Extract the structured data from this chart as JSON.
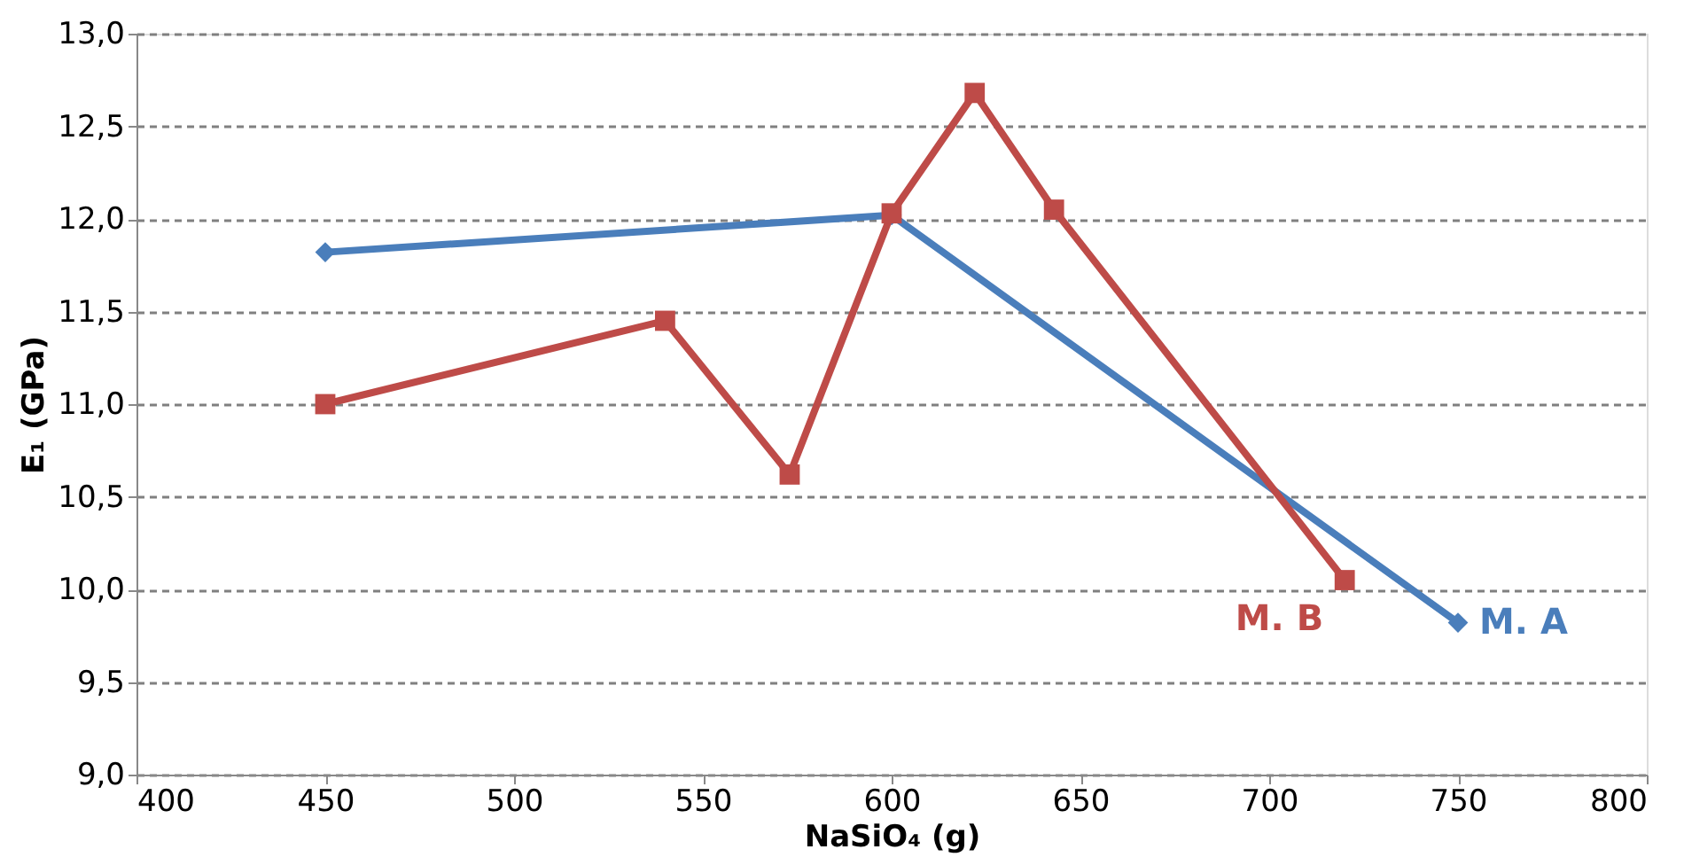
{
  "chart_data": {
    "type": "line",
    "xlabel": "NaSiO₄ (g)",
    "ylabel": "E₁ (GPa)",
    "xlim": [
      400,
      800
    ],
    "xticks": [
      400,
      450,
      500,
      550,
      600,
      650,
      700,
      750,
      800
    ],
    "ylim": [
      9,
      13
    ],
    "yticks": [
      {
        "value": 9,
        "label": "9,0"
      },
      {
        "value": 9.5,
        "label": "9,5"
      },
      {
        "value": 10,
        "label": "10,0"
      },
      {
        "value": 10.5,
        "label": "10,5"
      },
      {
        "value": 11,
        "label": "11,0"
      },
      {
        "value": 11.5,
        "label": "11,5"
      },
      {
        "value": 12,
        "label": "12,0"
      },
      {
        "value": 12.5,
        "label": "12,5"
      },
      {
        "value": 13,
        "label": "13,0"
      }
    ],
    "grid": "y",
    "legend": false,
    "series": [
      {
        "name": "M. A",
        "color": "#4a7ebb",
        "marker": "diamond",
        "x": [
          450,
          600,
          750
        ],
        "values": [
          11.82,
          12.02,
          9.82
        ]
      },
      {
        "name": "M. B",
        "color": "#be4b48",
        "marker": "square",
        "x": [
          450,
          540,
          573,
          600,
          622,
          643,
          720
        ],
        "values": [
          11.0,
          11.45,
          10.62,
          12.03,
          12.68,
          12.05,
          10.05
        ]
      }
    ]
  }
}
